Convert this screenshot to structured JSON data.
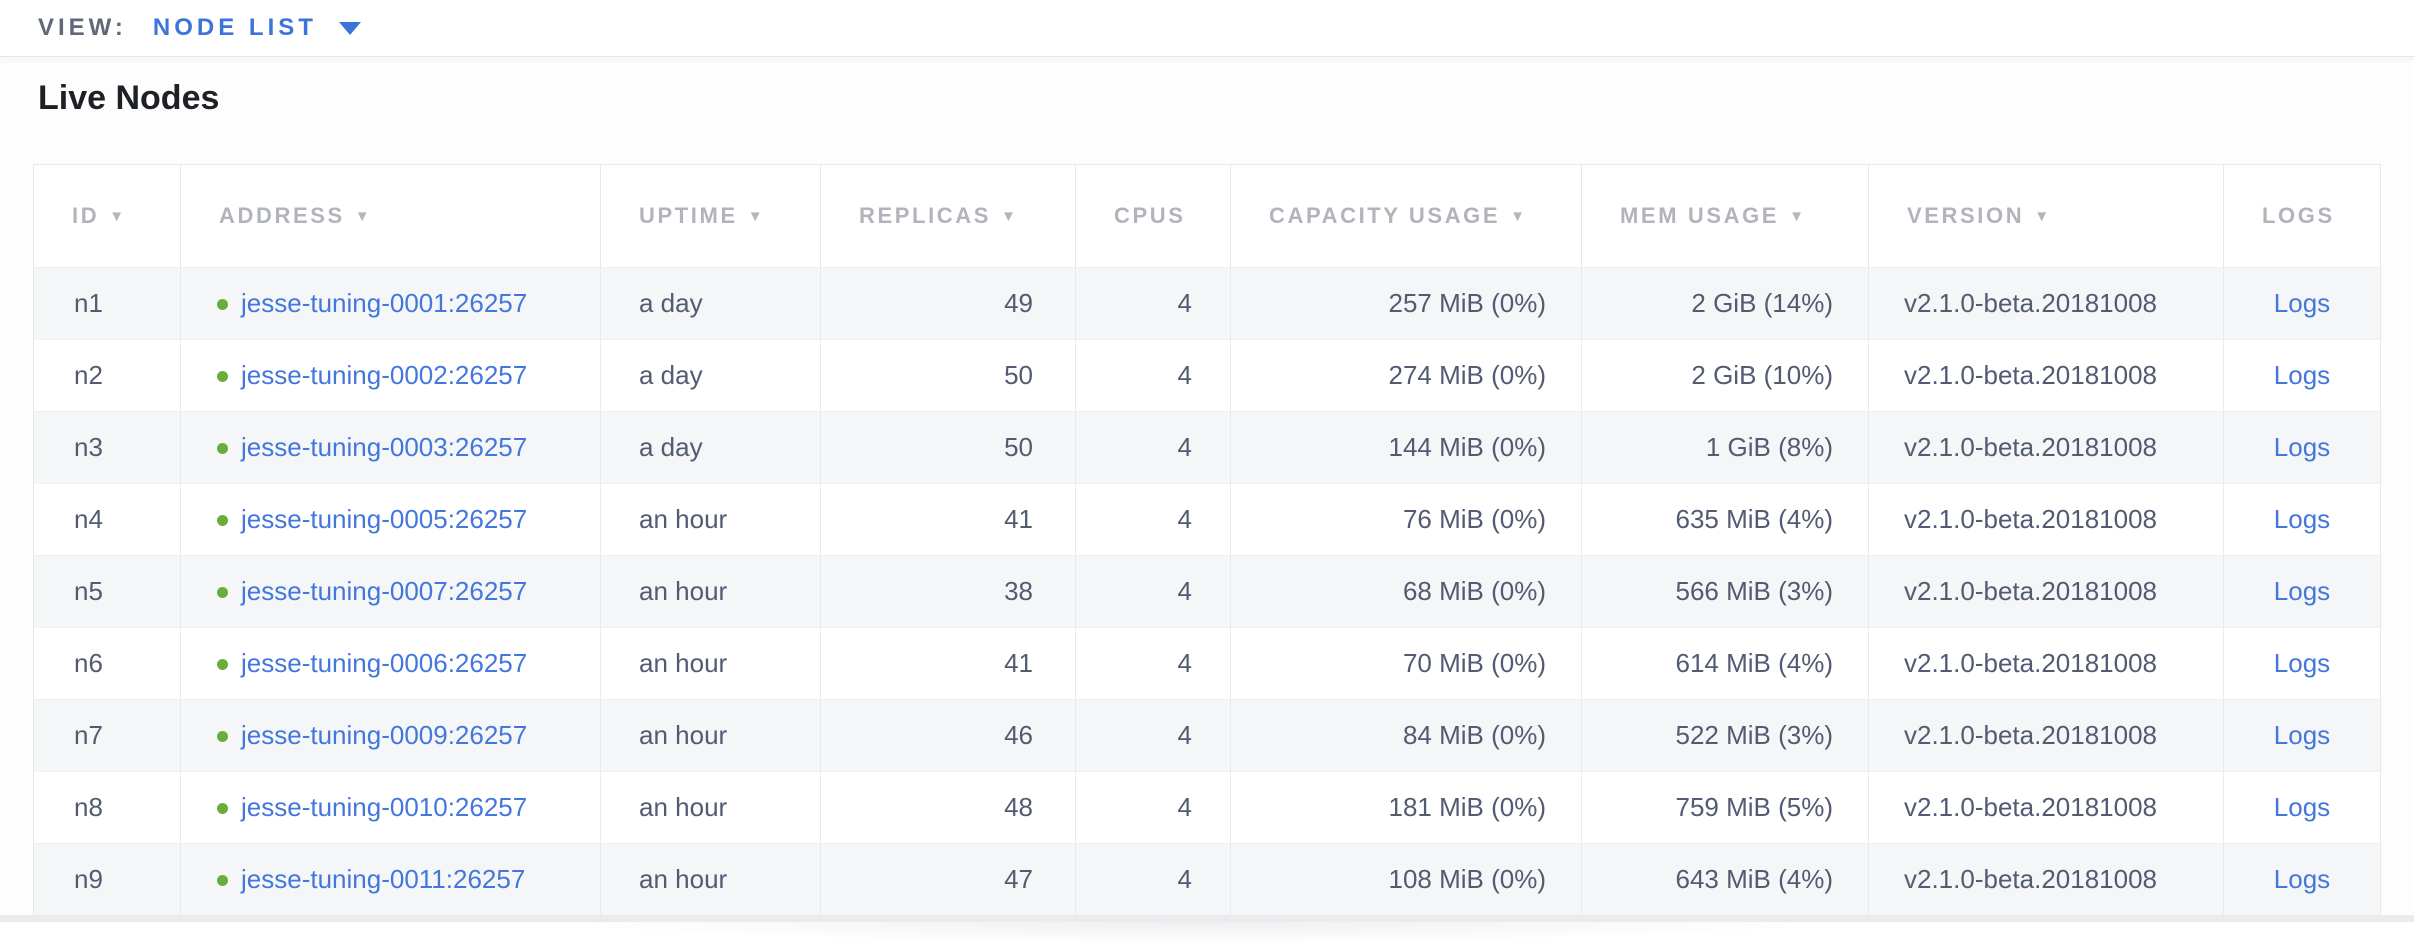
{
  "view_bar": {
    "label": "VIEW:",
    "selected": "NODE LIST"
  },
  "page": {
    "title": "Live Nodes"
  },
  "colors": {
    "accent": "#3d74d9",
    "link": "#4377dd",
    "green_dot": "#69ad3e",
    "header_text": "#b2b4bb",
    "cell_text": "#535b72",
    "stripe": "#f5f6f7",
    "title": "#1d2025",
    "muted_label": "#60687a"
  },
  "icons": {
    "dropdown_caret": "caret-down-icon",
    "sort_indicator": "sort-desc-icon",
    "node_status": "live-node-dot-icon"
  },
  "table": {
    "logs_label": "Logs",
    "columns": [
      {
        "id": "id",
        "label": "ID",
        "sortable": true
      },
      {
        "id": "address",
        "label": "ADDRESS",
        "sortable": true
      },
      {
        "id": "uptime",
        "label": "UPTIME",
        "sortable": true
      },
      {
        "id": "replicas",
        "label": "REPLICAS",
        "sortable": true
      },
      {
        "id": "cpus",
        "label": "CPUS",
        "sortable": false
      },
      {
        "id": "capacity",
        "label": "CAPACITY USAGE",
        "sortable": true
      },
      {
        "id": "mem",
        "label": "MEM USAGE",
        "sortable": true
      },
      {
        "id": "version",
        "label": "VERSION",
        "sortable": true
      },
      {
        "id": "logs",
        "label": "LOGS",
        "sortable": false
      }
    ],
    "rows": [
      {
        "id": "n1",
        "address": "jesse-tuning-0001:26257",
        "uptime": "a day",
        "replicas": "49",
        "cpus": "4",
        "capacity": "257 MiB (0%)",
        "mem": "2 GiB (14%)",
        "version": "v2.1.0-beta.20181008"
      },
      {
        "id": "n2",
        "address": "jesse-tuning-0002:26257",
        "uptime": "a day",
        "replicas": "50",
        "cpus": "4",
        "capacity": "274 MiB (0%)",
        "mem": "2 GiB (10%)",
        "version": "v2.1.0-beta.20181008"
      },
      {
        "id": "n3",
        "address": "jesse-tuning-0003:26257",
        "uptime": "a day",
        "replicas": "50",
        "cpus": "4",
        "capacity": "144 MiB (0%)",
        "mem": "1 GiB (8%)",
        "version": "v2.1.0-beta.20181008"
      },
      {
        "id": "n4",
        "address": "jesse-tuning-0005:26257",
        "uptime": "an hour",
        "replicas": "41",
        "cpus": "4",
        "capacity": "76 MiB (0%)",
        "mem": "635 MiB (4%)",
        "version": "v2.1.0-beta.20181008"
      },
      {
        "id": "n5",
        "address": "jesse-tuning-0007:26257",
        "uptime": "an hour",
        "replicas": "38",
        "cpus": "4",
        "capacity": "68 MiB (0%)",
        "mem": "566 MiB (3%)",
        "version": "v2.1.0-beta.20181008"
      },
      {
        "id": "n6",
        "address": "jesse-tuning-0006:26257",
        "uptime": "an hour",
        "replicas": "41",
        "cpus": "4",
        "capacity": "70 MiB (0%)",
        "mem": "614 MiB (4%)",
        "version": "v2.1.0-beta.20181008"
      },
      {
        "id": "n7",
        "address": "jesse-tuning-0009:26257",
        "uptime": "an hour",
        "replicas": "46",
        "cpus": "4",
        "capacity": "84 MiB (0%)",
        "mem": "522 MiB (3%)",
        "version": "v2.1.0-beta.20181008"
      },
      {
        "id": "n8",
        "address": "jesse-tuning-0010:26257",
        "uptime": "an hour",
        "replicas": "48",
        "cpus": "4",
        "capacity": "181 MiB (0%)",
        "mem": "759 MiB (5%)",
        "version": "v2.1.0-beta.20181008"
      },
      {
        "id": "n9",
        "address": "jesse-tuning-0011:26257",
        "uptime": "an hour",
        "replicas": "47",
        "cpus": "4",
        "capacity": "108 MiB (0%)",
        "mem": "643 MiB (4%)",
        "version": "v2.1.0-beta.20181008"
      }
    ]
  }
}
